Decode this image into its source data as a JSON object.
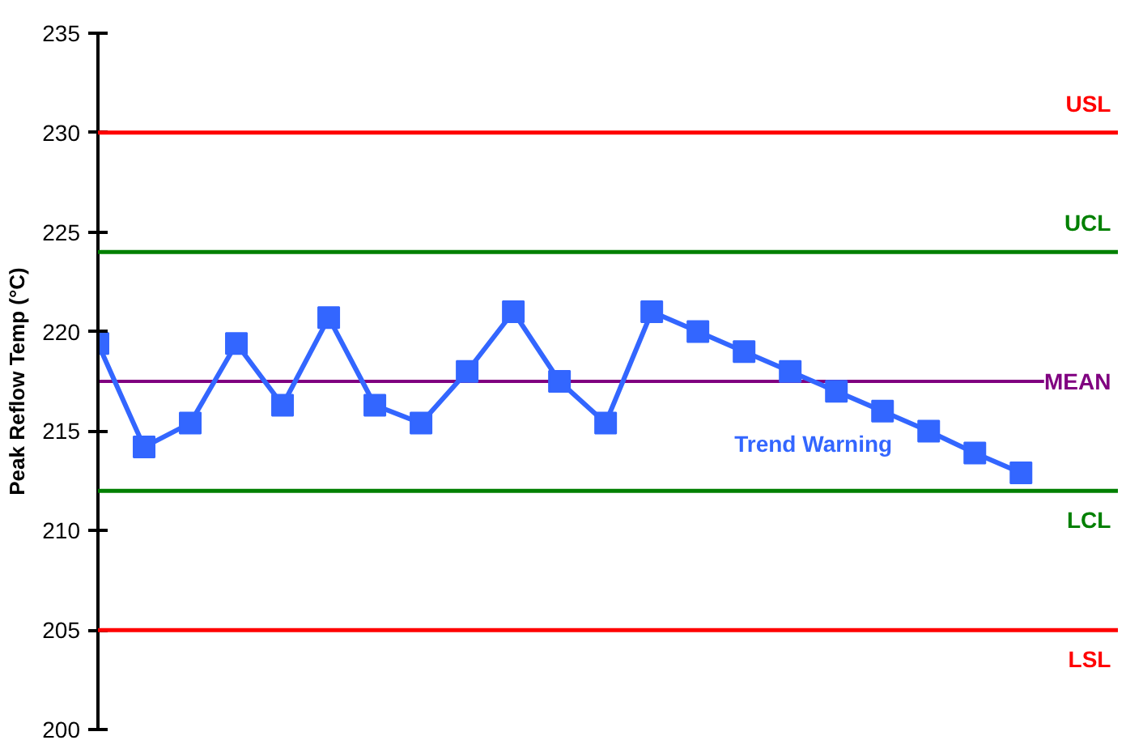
{
  "chart_data": {
    "type": "line",
    "ylabel": "Peak Reflow Temp (°C)",
    "categories": [
      null,
      null,
      null,
      null,
      null,
      null,
      null,
      null,
      null,
      null,
      null,
      null,
      null,
      null,
      null,
      null,
      null,
      null,
      null,
      null,
      null
    ],
    "series": [
      {
        "color": "#3366ff",
        "values": [
          219.4,
          214.2,
          215.4,
          219.4,
          216.3,
          220.7,
          216.3,
          215.4,
          218.0,
          221.0,
          217.5,
          215.4,
          221.0,
          220.0,
          219.0,
          218.0,
          217.0,
          216.0,
          215.0,
          213.9,
          212.9
        ]
      }
    ],
    "marker": "square",
    "line_style": "solid",
    "ylim": [
      200,
      235
    ],
    "yticks": [
      200,
      205,
      210,
      215,
      220,
      225,
      230,
      235
    ],
    "tick_labels": "y",
    "grid": false,
    "ref_lines": [
      {
        "axis": "y",
        "value": 230,
        "label": "USL",
        "color": "#ff0000"
      },
      {
        "axis": "y",
        "value": 224,
        "label": "UCL",
        "color": "#008000"
      },
      {
        "axis": "y",
        "value": 217.5,
        "label": "MEAN",
        "color": "#800080"
      },
      {
        "axis": "y",
        "value": 212,
        "label": "LCL",
        "color": "#008000"
      },
      {
        "axis": "y",
        "value": 205,
        "label": "LSL",
        "color": "#ff0000"
      }
    ],
    "annotations": [
      "Trend Warning"
    ]
  }
}
